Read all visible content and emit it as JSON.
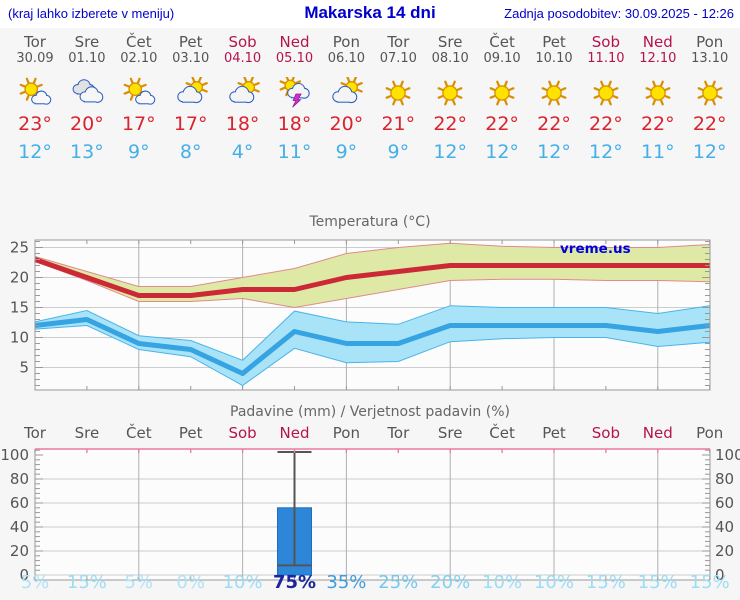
{
  "header": {
    "left_note": "(kraj lahko izberete v meniju)",
    "title": "Makarska 14 dni",
    "updated": "Zadnja posodobitev: 30.09.2025 - 12:26"
  },
  "colors": {
    "header_text": "#0000cc",
    "weekend": "#b5134e",
    "weekday": "#555555",
    "temp_high": "#d9232e",
    "temp_low": "#45afe8",
    "plot_bg": "#fcfcfc",
    "grid_h": "#cccccc",
    "grid_v": "#b0b0b0",
    "border": "#999999",
    "tick": "#999999",
    "axis_text": "#555555",
    "precip_top_border": "#e87a9a",
    "bar": "#2e86d8",
    "bar_edge": "#1b6ec2",
    "whisker": "#555555",
    "watermark": "#0000dd"
  },
  "days": [
    {
      "name": "Tor",
      "date": "30.09",
      "icon": "sun-cloud",
      "high": "23°",
      "low": "12°",
      "weekend": false
    },
    {
      "name": "Sre",
      "date": "01.10",
      "icon": "cloudy",
      "high": "20°",
      "low": "13°",
      "weekend": false
    },
    {
      "name": "Čet",
      "date": "02.10",
      "icon": "sun-cloud",
      "high": "17°",
      "low": "9°",
      "weekend": false
    },
    {
      "name": "Pet",
      "date": "03.10",
      "icon": "cloud-sun",
      "high": "17°",
      "low": "8°",
      "weekend": false
    },
    {
      "name": "Sob",
      "date": "04.10",
      "icon": "cloud-sun",
      "high": "18°",
      "low": "4°",
      "weekend": true
    },
    {
      "name": "Ned",
      "date": "05.10",
      "icon": "thunder",
      "high": "18°",
      "low": "11°",
      "weekend": true
    },
    {
      "name": "Pon",
      "date": "06.10",
      "icon": "cloud-sun",
      "high": "20°",
      "low": "9°",
      "weekend": false
    },
    {
      "name": "Tor",
      "date": "07.10",
      "icon": "sunny",
      "high": "21°",
      "low": "9°",
      "weekend": false
    },
    {
      "name": "Sre",
      "date": "08.10",
      "icon": "sunny",
      "high": "22°",
      "low": "12°",
      "weekend": false
    },
    {
      "name": "Čet",
      "date": "09.10",
      "icon": "sunny",
      "high": "22°",
      "low": "12°",
      "weekend": false
    },
    {
      "name": "Pet",
      "date": "10.10",
      "icon": "sunny",
      "high": "22°",
      "low": "12°",
      "weekend": false
    },
    {
      "name": "Sob",
      "date": "11.10",
      "icon": "sunny",
      "high": "22°",
      "low": "12°",
      "weekend": true
    },
    {
      "name": "Ned",
      "date": "12.10",
      "icon": "sunny",
      "high": "22°",
      "low": "11°",
      "weekend": true
    },
    {
      "name": "Pon",
      "date": "13.10",
      "icon": "sunny",
      "high": "22°",
      "low": "12°",
      "weekend": false
    }
  ],
  "chart_data": [
    {
      "type": "line",
      "title": "Temperatura (°C)",
      "watermark": "vreme.us",
      "x_count": 14,
      "ylim": [
        1.25,
        26.25
      ],
      "yticks": [
        5,
        10,
        15,
        20,
        25
      ],
      "vgrid_at": [
        2,
        4,
        6,
        8,
        10,
        12
      ],
      "legend_position": "none",
      "series": [
        {
          "name": "max-temp",
          "color": "#cc2936",
          "band_color": "#dfe9a6",
          "band_edge": "#e08a8a",
          "values": [
            23,
            20,
            17,
            17,
            18,
            18,
            20,
            21,
            22,
            22,
            22,
            22,
            22,
            22
          ],
          "upper": [
            23.5,
            21,
            18.5,
            18.5,
            20,
            21.5,
            24,
            25,
            25.7,
            25.2,
            25,
            25,
            25,
            25.5
          ],
          "lower": [
            22.7,
            19.5,
            16,
            16,
            16.5,
            15,
            16.5,
            18,
            19.5,
            19.7,
            19.7,
            19.5,
            19.5,
            19.3
          ]
        },
        {
          "name": "min-temp",
          "color": "#36a3e2",
          "band_color": "#a9e3f8",
          "band_edge": "#49b4ea",
          "values": [
            12,
            13,
            9,
            8,
            4,
            11,
            9,
            9,
            12,
            12,
            12,
            12,
            11,
            12
          ],
          "upper": [
            12.6,
            14.5,
            10.3,
            9.5,
            6.2,
            14.4,
            12.6,
            12.2,
            15.3,
            15,
            15,
            15,
            14,
            15.3
          ],
          "lower": [
            11.4,
            12,
            8,
            6.8,
            2,
            8.2,
            5.8,
            6,
            9.3,
            9.8,
            10,
            10,
            8.5,
            9.2
          ]
        }
      ]
    },
    {
      "type": "bar",
      "title": "Padavine (mm) / Verjetnost padavin (%)",
      "day_labels": [
        "Tor",
        "Sre",
        "Čet",
        "Pet",
        "Sob",
        "Ned",
        "Pon",
        "Tor",
        "Sre",
        "Čet",
        "Pet",
        "Sob",
        "Ned",
        "Pon"
      ],
      "weekend_flags": [
        false,
        false,
        false,
        false,
        true,
        true,
        false,
        false,
        false,
        false,
        false,
        true,
        true,
        false
      ],
      "ylim": [
        -4,
        105
      ],
      "yticks": [
        0,
        20,
        40,
        60,
        80,
        100
      ],
      "vgrid_at": [
        2,
        4,
        6,
        8,
        10,
        12
      ],
      "bars": [
        {
          "index": 5,
          "value": 56,
          "whisker_low": 8,
          "whisker_high": 102.5
        }
      ],
      "probabilities": [
        {
          "label": "5%",
          "color": "#aee3f7",
          "bold": false
        },
        {
          "label": "15%",
          "color": "#9cdcf5",
          "bold": false
        },
        {
          "label": "5%",
          "color": "#aee3f7",
          "bold": false
        },
        {
          "label": "0%",
          "color": "#aee3f7",
          "bold": false
        },
        {
          "label": "10%",
          "color": "#9cdcf5",
          "bold": false
        },
        {
          "label": "75%",
          "color": "#1c2699",
          "bold": true
        },
        {
          "label": "35%",
          "color": "#3e9ddd",
          "bold": false
        },
        {
          "label": "25%",
          "color": "#74c8ee",
          "bold": false
        },
        {
          "label": "20%",
          "color": "#84d0f0",
          "bold": false
        },
        {
          "label": "10%",
          "color": "#9cdcf5",
          "bold": false
        },
        {
          "label": "10%",
          "color": "#9cdcf5",
          "bold": false
        },
        {
          "label": "15%",
          "color": "#9cdcf5",
          "bold": false
        },
        {
          "label": "15%",
          "color": "#9cdcf5",
          "bold": false
        },
        {
          "label": "15%",
          "color": "#9cdcf5",
          "bold": false
        }
      ]
    }
  ]
}
